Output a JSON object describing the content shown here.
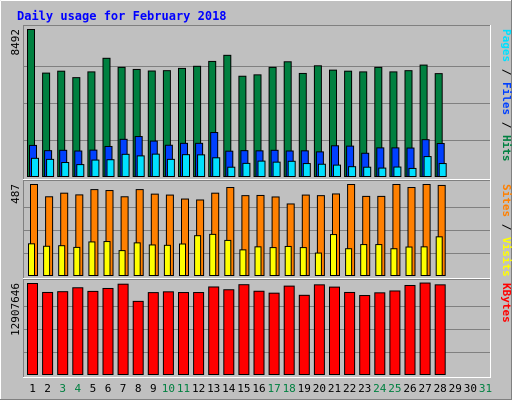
{
  "chart_data": {
    "type": "bar",
    "title": "Daily usage for February 2018",
    "categories": [
      "1",
      "2",
      "3",
      "4",
      "5",
      "6",
      "7",
      "8",
      "9",
      "10",
      "11",
      "12",
      "13",
      "14",
      "15",
      "16",
      "17",
      "18",
      "19",
      "20",
      "21",
      "22",
      "23",
      "24",
      "25",
      "26",
      "27",
      "28",
      "29",
      "30",
      "31"
    ],
    "weekend_days": [
      3,
      4,
      10,
      11,
      17,
      18,
      24,
      25,
      31
    ],
    "colors": {
      "hits": "#008040",
      "files": "#0040ff",
      "pages": "#00e0ff",
      "visits": "#ffff00",
      "sites": "#ff8000",
      "kbytes": "#ff0000",
      "weekend_label": "#008040",
      "title": "#0000ff",
      "background": "#c0c0c0"
    },
    "panels": [
      {
        "name": "requests",
        "max_label": "8492",
        "ymax": 8492,
        "side_labels": [
          {
            "text": "Pages",
            "color": "#00e0ff"
          },
          {
            "text": " / ",
            "color": "#000000"
          },
          {
            "text": "Files",
            "color": "#0040ff"
          },
          {
            "text": " / ",
            "color": "#000000"
          },
          {
            "text": "Hits",
            "color": "#008040"
          }
        ],
        "series": [
          {
            "key": "hits",
            "values": [
              8492,
              5990,
              6100,
              5730,
              6060,
              6840,
              6320,
              6200,
              6110,
              6130,
              6260,
              6380,
              6660,
              7010,
              5810,
              5890,
              6320,
              6640,
              5970,
              6410,
              6160,
              6100,
              6060,
              6320,
              6060,
              6130,
              6450,
              5960,
              0,
              0,
              0
            ]
          },
          {
            "key": "files",
            "values": [
              1840,
              1540,
              1560,
              1520,
              1570,
              1780,
              2190,
              2350,
              2090,
              1850,
              1960,
              1960,
              2580,
              1510,
              1540,
              1530,
              1560,
              1520,
              1530,
              1470,
              1820,
              1800,
              1390,
              1700,
              1700,
              1690,
              2170,
              1950,
              0,
              0,
              0
            ]
          },
          {
            "key": "pages",
            "values": [
              1100,
              1040,
              860,
              740,
              1000,
              1020,
              1330,
              1240,
              1340,
              1040,
              1310,
              1300,
              1130,
              590,
              810,
              940,
              880,
              930,
              800,
              760,
              710,
              620,
              590,
              540,
              600,
              520,
              1200,
              800,
              0,
              0,
              0
            ]
          }
        ]
      },
      {
        "name": "visits",
        "max_label": "487",
        "ymax": 487,
        "side_labels": [
          {
            "text": "Sites",
            "color": "#ff8000"
          },
          {
            "text": " / ",
            "color": "#000000"
          },
          {
            "text": "Visits",
            "color": "#ffff00"
          }
        ],
        "series": [
          {
            "key": "sites",
            "values": [
              487,
              422,
              441,
              432,
              460,
              455,
              422,
              460,
              436,
              431,
              410,
              405,
              441,
              471,
              428,
              429,
              421,
              384,
              431,
              428,
              437,
              487,
              424,
              424,
              487,
              471,
              487,
              482,
              0,
              0,
              0
            ]
          },
          {
            "key": "visits",
            "values": [
              173,
              160,
              163,
              154,
              183,
              185,
              137,
              178,
              167,
              165,
              172,
              216,
              223,
              191,
              141,
              157,
              153,
              159,
              153,
              124,
              222,
              147,
              169,
              169,
              147,
              156,
              157,
              210,
              0,
              0,
              0
            ]
          }
        ]
      },
      {
        "name": "kbytes",
        "max_label": "12907646",
        "ymax": 12907646,
        "side_labels": [
          {
            "text": "KBytes",
            "color": "#ff0000"
          }
        ],
        "series": [
          {
            "key": "kbytes",
            "values": [
              12907646,
              11650000,
              11760000,
              12310000,
              11800000,
              12210000,
              12810000,
              10400000,
              11630000,
              11740000,
              11640000,
              11640000,
              12420000,
              12030000,
              12740000,
              11820000,
              11550000,
              12540000,
              11250000,
              12720000,
              12400000,
              11650000,
              11220000,
              11600000,
              11860000,
              12630000,
              12970000,
              12720000,
              0,
              0,
              0
            ]
          }
        ]
      }
    ]
  }
}
